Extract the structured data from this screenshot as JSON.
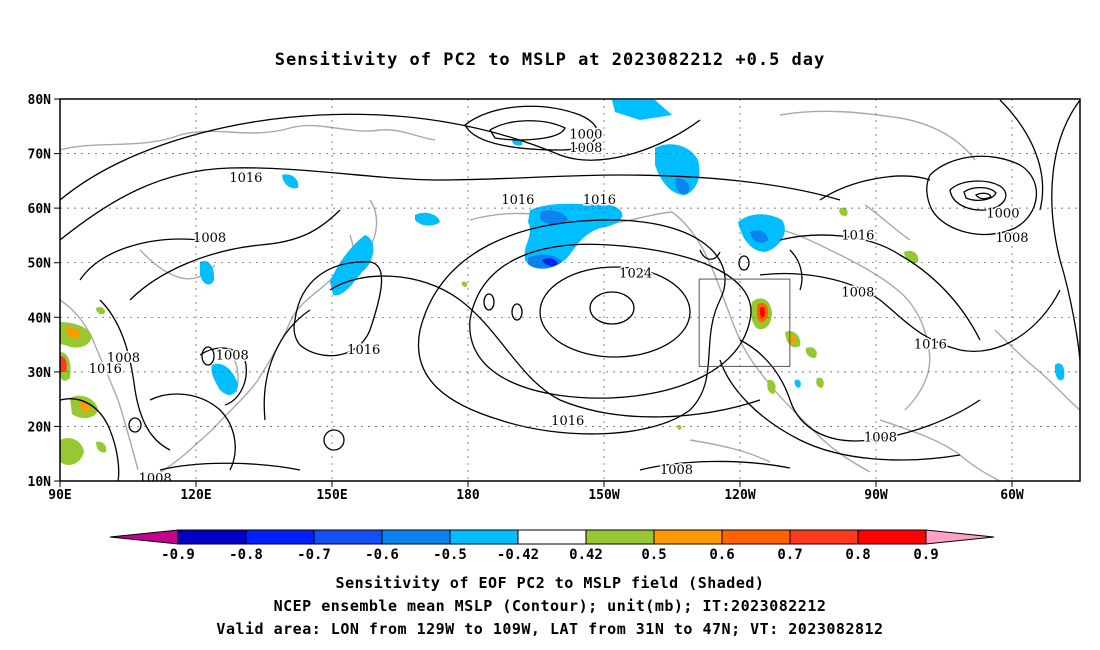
{
  "title": "Sensitivity of PC2 to MSLP at 2023082212 +0.5 day",
  "axes": {
    "lon_labels": [
      "90E",
      "120E",
      "150E",
      "180",
      "150W",
      "120W",
      "90W",
      "60W"
    ],
    "lat_labels": [
      "80N",
      "70N",
      "60N",
      "50N",
      "40N",
      "30N",
      "20N",
      "10N"
    ]
  },
  "map_extent": {
    "lon_start_east": 90,
    "lon_end_east": 315,
    "lat_min": 10,
    "lat_max": 80
  },
  "valid_box": {
    "lon_west": -129,
    "lon_east": -109,
    "lat_south": 31,
    "lat_north": 47
  },
  "contour_labels": [
    {
      "text": "1000",
      "lon": 206,
      "lat": 73.5
    },
    {
      "text": "1008",
      "lon": 206,
      "lat": 71
    },
    {
      "text": "1016",
      "lon": 131,
      "lat": 65.5
    },
    {
      "text": "1016",
      "lon": 191,
      "lat": 61.5
    },
    {
      "text": "1016",
      "lon": 209,
      "lat": 61.5
    },
    {
      "text": "1000",
      "lon": 298,
      "lat": 59
    },
    {
      "text": "1008",
      "lon": 300,
      "lat": 54.5
    },
    {
      "text": "1008",
      "lon": 123,
      "lat": 54.5
    },
    {
      "text": "1016",
      "lon": 266,
      "lat": 55
    },
    {
      "text": "1024",
      "lon": 217,
      "lat": 48
    },
    {
      "text": "1008",
      "lon": 266,
      "lat": 44.5
    },
    {
      "text": "1016",
      "lon": 282,
      "lat": 35
    },
    {
      "text": "1016",
      "lon": 157,
      "lat": 34
    },
    {
      "text": "1008",
      "lon": 128,
      "lat": 33
    },
    {
      "text": "1008",
      "lon": 104,
      "lat": 32.5
    },
    {
      "text": "1016",
      "lon": 100,
      "lat": 30.5
    },
    {
      "text": "1016",
      "lon": 202,
      "lat": 21
    },
    {
      "text": "1008",
      "lon": 271,
      "lat": 18
    },
    {
      "text": "1008",
      "lon": 226,
      "lat": 12
    },
    {
      "text": "1008",
      "lon": 111,
      "lat": 10.5
    }
  ],
  "colorbar": {
    "colors": [
      "#c4008c",
      "#0000c8",
      "#0020ff",
      "#1450f5",
      "#0a82f0",
      "#00beff",
      "#ffffff",
      "#96c832",
      "#ff9a00",
      "#ff6400",
      "#ff3a1e",
      "#ff0000",
      "#ffa0c8"
    ],
    "labels": [
      "-0.9",
      "-0.8",
      "-0.7",
      "-0.6",
      "-0.5",
      "-0.42",
      "0.42",
      "0.5",
      "0.6",
      "0.7",
      "0.8",
      "0.9"
    ]
  },
  "captions": {
    "line1": "Sensitivity of EOF PC2 to MSLP field (Shaded)",
    "line2": "NCEP ensemble mean MSLP (Contour); unit(mb); IT:2023082212",
    "line3": "Valid area: LON from 129W to 109W, LAT from 31N to 47N; VT: 2023082812"
  }
}
